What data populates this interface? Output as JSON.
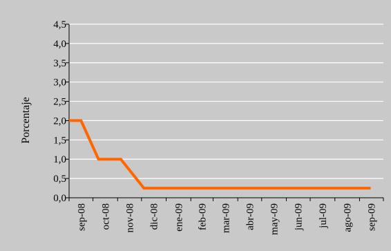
{
  "chart_data": {
    "type": "line",
    "title": "",
    "xlabel": "",
    "ylabel": "Porcentaje",
    "ylim": [
      0,
      4.5
    ],
    "yticks": [
      "0,0",
      "0,5",
      "1,0",
      "1,5",
      "2,0",
      "2,5",
      "3,0",
      "3,5",
      "4,0",
      "4,5"
    ],
    "categories": [
      "sep-08",
      "oct-08",
      "nov-08",
      "dic-08",
      "ene-09",
      "feb-09",
      "mar-09",
      "abr-09",
      "may-09",
      "jun-09",
      "jul-09",
      "ago-09",
      "sep-09"
    ],
    "grid": true,
    "legend": "none",
    "series": [
      {
        "color": "#ff6600",
        "points": [
          {
            "x": "2008-09-01",
            "y": 2.0
          },
          {
            "x": "2008-09-16",
            "y": 2.0
          },
          {
            "x": "2008-10-08",
            "y": 1.0
          },
          {
            "x": "2008-11-05",
            "y": 1.0
          },
          {
            "x": "2008-12-04",
            "y": 0.25
          },
          {
            "x": "2009-09-15",
            "y": 0.25
          }
        ]
      }
    ],
    "colors": {
      "background": "#c9c9c9",
      "plot_area": "#c9c9c9",
      "grid": "#ffffff",
      "axis": "#000000",
      "line": "#ff6600"
    }
  }
}
